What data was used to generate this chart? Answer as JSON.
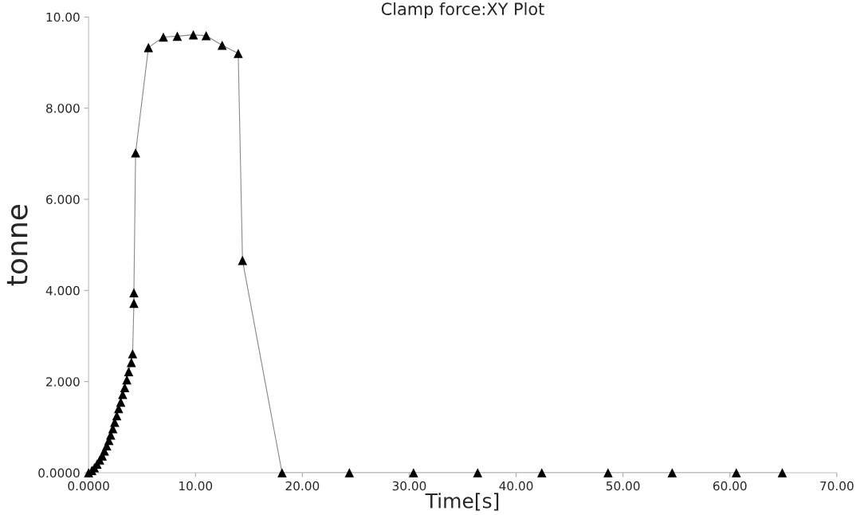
{
  "chart_data": {
    "type": "line",
    "title": "Clamp force:XY Plot",
    "xlabel": "Time[s]",
    "ylabel": "tonne",
    "series": [
      {
        "color": "#000000",
        "x": [
          0,
          0.3,
          0.54,
          0.79,
          1.04,
          1.28,
          1.48,
          1.7,
          1.9,
          2.07,
          2.27,
          2.44,
          2.64,
          2.81,
          3.01,
          3.19,
          3.38,
          3.58,
          3.75,
          4.0,
          4.12,
          4.24,
          4.24,
          4.4,
          5.6,
          7.0,
          8.3,
          9.8,
          11.0,
          12.5,
          14.0,
          14.4,
          18.1,
          24.4,
          30.4,
          36.4,
          42.4,
          48.6,
          54.6,
          60.6,
          64.9
        ],
        "values": [
          0,
          0.05,
          0.11,
          0.19,
          0.28,
          0.37,
          0.48,
          0.59,
          0.71,
          0.83,
          0.97,
          1.11,
          1.25,
          1.41,
          1.55,
          1.72,
          1.87,
          2.04,
          2.22,
          2.42,
          2.61,
          3.72,
          3.95,
          7.02,
          9.33,
          9.56,
          9.58,
          9.61,
          9.59,
          9.38,
          9.2,
          4.66,
          0,
          0,
          0,
          0,
          0,
          0,
          0,
          0,
          0
        ]
      }
    ],
    "xlim": [
      0,
      70
    ],
    "ylim": [
      0,
      10
    ],
    "xticks": [
      {
        "value": 0,
        "label": "0.0000"
      },
      {
        "value": 10,
        "label": "10.00"
      },
      {
        "value": 20,
        "label": "20.00"
      },
      {
        "value": 30,
        "label": "30.00"
      },
      {
        "value": 40,
        "label": "40.00"
      },
      {
        "value": 50,
        "label": "50.00"
      },
      {
        "value": 60,
        "label": "60.00"
      },
      {
        "value": 70,
        "label": "70.00"
      }
    ],
    "yticks": [
      {
        "value": 0,
        "label": "0.0000"
      },
      {
        "value": 2,
        "label": "2.000"
      },
      {
        "value": 4,
        "label": "4.000"
      },
      {
        "value": 6,
        "label": "6.000"
      },
      {
        "value": 8,
        "label": "8.000"
      },
      {
        "value": 10,
        "label": "10.00"
      }
    ],
    "marker": "triangle",
    "line_style": "solid",
    "grid": false,
    "legend": false
  }
}
